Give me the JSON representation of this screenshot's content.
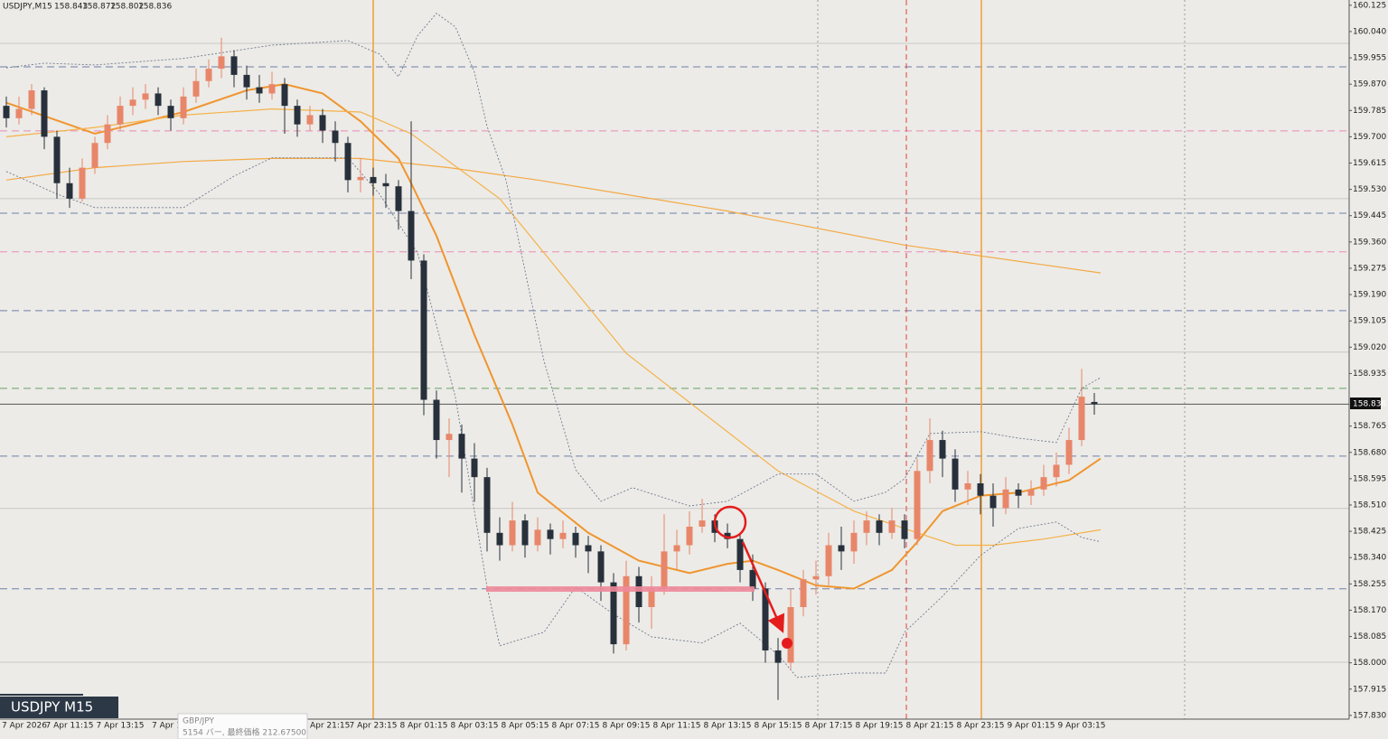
{
  "chart_data": {
    "type": "candlestick",
    "symbol_header": "USDJPY,M15",
    "symbol_label": "USDJPY M15",
    "popup": {
      "title": "GBP/JPY",
      "text": "5154 バー, 最終価格 212.67500"
    },
    "ylim": [
      157.818,
      160.142
    ],
    "yticks": [
      160.125,
      {
        "value": 160.04,
        "label": "160.040"
      },
      159.955,
      {
        "value": 159.87,
        "label": "159.870"
      },
      159.785,
      {
        "value": 159.7,
        "label": "159.700"
      },
      159.615,
      {
        "value": 159.53,
        "label": "159.530"
      },
      159.445,
      {
        "value": 159.36,
        "label": "159.360"
      },
      159.275,
      {
        "value": 159.19,
        "label": "159.190"
      },
      159.105,
      {
        "value": 159.02,
        "label": "159.020"
      },
      158.935,
      158.765,
      {
        "value": 158.68,
        "label": "158.680"
      },
      158.595,
      {
        "value": 158.51,
        "label": "158.510"
      },
      158.425,
      {
        "value": 158.34,
        "label": "158.340"
      },
      158.255,
      {
        "value": 158.17,
        "label": "158.170"
      },
      158.085,
      {
        "value": 158,
        "label": "158.000"
      },
      157.915,
      {
        "value": 157.83,
        "label": "157.830"
      }
    ],
    "x_labels": [
      "7 Apr 2026",
      "7 Apr 11:15",
      "7 Apr 13:15",
      "7 Apr 1",
      "Apr 21:15",
      "7 Apr 23:15",
      "8 Apr 01:15",
      "8 Apr 03:15",
      "8 Apr 05:15",
      "8 Apr 07:15",
      "8 Apr 09:15",
      "8 Apr 11:15",
      "8 Apr 13:15",
      "8 Apr 15:15",
      "8 Apr 17:15",
      "8 Apr 19:15",
      "8 Apr 21:15",
      "8 Apr 23:15",
      "9 Apr 01:15",
      "9 Apr 03:15"
    ],
    "up_color": "#e8866a",
    "down_color": "#27303b",
    "candles": [
      [
        159.8,
        159.83,
        159.73,
        159.76
      ],
      [
        159.76,
        159.83,
        159.74,
        159.79
      ],
      [
        159.79,
        159.87,
        159.77,
        159.85
      ],
      [
        159.85,
        159.86,
        159.66,
        159.7
      ],
      [
        159.7,
        159.72,
        159.5,
        159.55
      ],
      [
        159.55,
        159.6,
        159.47,
        159.5
      ],
      [
        159.5,
        159.63,
        159.49,
        159.6
      ],
      [
        159.6,
        159.7,
        159.58,
        159.68
      ],
      [
        159.68,
        159.77,
        159.66,
        159.74
      ],
      [
        159.74,
        159.83,
        159.72,
        159.8
      ],
      [
        159.8,
        159.86,
        159.77,
        159.82
      ],
      [
        159.82,
        159.87,
        159.79,
        159.84
      ],
      [
        159.84,
        159.86,
        159.77,
        159.8
      ],
      [
        159.8,
        159.82,
        159.72,
        159.76
      ],
      [
        159.76,
        159.86,
        159.74,
        159.83
      ],
      [
        159.83,
        159.92,
        159.81,
        159.88
      ],
      [
        159.88,
        159.95,
        159.86,
        159.92
      ],
      [
        159.92,
        160.02,
        159.89,
        159.96
      ],
      [
        159.96,
        159.98,
        159.86,
        159.9
      ],
      [
        159.9,
        159.93,
        159.82,
        159.86
      ],
      [
        159.86,
        159.9,
        159.81,
        159.84
      ],
      [
        159.84,
        159.91,
        159.82,
        159.87
      ],
      [
        159.87,
        159.89,
        159.71,
        159.8
      ],
      [
        159.8,
        159.82,
        159.7,
        159.74
      ],
      [
        159.74,
        159.8,
        159.72,
        159.77
      ],
      [
        159.77,
        159.79,
        159.68,
        159.72
      ],
      [
        159.72,
        159.75,
        159.62,
        159.68
      ],
      [
        159.68,
        159.7,
        159.52,
        159.56
      ],
      [
        159.56,
        159.63,
        159.52,
        159.57
      ],
      [
        159.57,
        159.6,
        159.51,
        159.55
      ],
      [
        159.55,
        159.58,
        159.47,
        159.54
      ],
      [
        159.54,
        159.56,
        159.4,
        159.46
      ],
      [
        159.46,
        159.75,
        159.24,
        159.3
      ],
      [
        159.3,
        159.32,
        158.8,
        158.85
      ],
      [
        158.85,
        158.88,
        158.66,
        158.72
      ],
      [
        158.72,
        158.79,
        158.6,
        158.74
      ],
      [
        158.74,
        158.77,
        158.55,
        158.66
      ],
      [
        158.66,
        158.71,
        158.52,
        158.6
      ],
      [
        158.6,
        158.63,
        158.36,
        158.42
      ],
      [
        158.42,
        158.47,
        158.33,
        158.38
      ],
      [
        158.38,
        158.52,
        158.36,
        158.46
      ],
      [
        158.46,
        158.48,
        158.34,
        158.38
      ],
      [
        158.38,
        158.47,
        158.36,
        158.43
      ],
      [
        158.43,
        158.45,
        158.35,
        158.4
      ],
      [
        158.4,
        158.46,
        158.37,
        158.42
      ],
      [
        158.42,
        158.44,
        158.34,
        158.38
      ],
      [
        158.38,
        158.41,
        158.29,
        158.36
      ],
      [
        158.36,
        158.38,
        158.2,
        158.26
      ],
      [
        158.26,
        158.29,
        158.03,
        158.06
      ],
      [
        158.06,
        158.33,
        158.04,
        158.28
      ],
      [
        158.28,
        158.31,
        158.13,
        158.18
      ],
      [
        158.18,
        158.28,
        158.11,
        158.24
      ],
      [
        158.24,
        158.48,
        158.22,
        158.36
      ],
      [
        158.36,
        158.43,
        158.3,
        158.38
      ],
      [
        158.38,
        158.49,
        158.35,
        158.44
      ],
      [
        158.44,
        158.53,
        158.42,
        158.46
      ],
      [
        158.46,
        158.48,
        158.39,
        158.42
      ],
      [
        158.42,
        158.45,
        158.37,
        158.4
      ],
      [
        158.4,
        158.42,
        158.26,
        158.3
      ],
      [
        158.3,
        158.35,
        158.2,
        158.24
      ],
      [
        158.24,
        158.26,
        158.0,
        158.04
      ],
      [
        158.04,
        158.08,
        157.88,
        158.0
      ],
      [
        158.0,
        158.24,
        157.98,
        158.18
      ],
      [
        158.18,
        158.3,
        158.15,
        158.27
      ],
      [
        158.27,
        158.33,
        158.22,
        158.28
      ],
      [
        158.28,
        158.42,
        158.25,
        158.38
      ],
      [
        158.38,
        158.44,
        158.3,
        158.36
      ],
      [
        158.36,
        158.46,
        158.32,
        158.42
      ],
      [
        158.42,
        158.49,
        158.38,
        158.46
      ],
      [
        158.46,
        158.48,
        158.38,
        158.42
      ],
      [
        158.42,
        158.5,
        158.4,
        158.46
      ],
      [
        158.46,
        158.48,
        158.37,
        158.4
      ],
      [
        158.4,
        158.66,
        158.38,
        158.62
      ],
      [
        158.62,
        158.79,
        158.58,
        158.72
      ],
      [
        158.72,
        158.75,
        158.6,
        158.66
      ],
      [
        158.66,
        158.69,
        158.52,
        158.56
      ],
      [
        158.56,
        158.62,
        158.51,
        158.58
      ],
      [
        158.58,
        158.61,
        158.48,
        158.54
      ],
      [
        158.54,
        158.58,
        158.44,
        158.5
      ],
      [
        158.5,
        158.6,
        158.48,
        158.56
      ],
      [
        158.56,
        158.58,
        158.5,
        158.54
      ],
      [
        158.54,
        158.59,
        158.51,
        158.56
      ],
      [
        158.56,
        158.64,
        158.54,
        158.6
      ],
      [
        158.6,
        158.68,
        158.57,
        158.64
      ],
      [
        158.64,
        158.76,
        158.61,
        158.72
      ],
      [
        158.72,
        158.95,
        158.7,
        158.86
      ],
      [
        158.843,
        158.872,
        158.802,
        158.836
      ]
    ],
    "levels": [
      {
        "price": 159.926,
        "color": "#6f7fa8",
        "dash": true
      },
      {
        "price": 159.453,
        "color": "#6f7fa8",
        "dash": true
      },
      {
        "price": 159.138,
        "color": "#6f7fa8",
        "dash": true
      },
      {
        "price": 158.668,
        "color": "#6f7fa8",
        "dash": true
      },
      {
        "price": 158.239,
        "color": "#6f7fa8",
        "dash": true
      },
      {
        "price": 159.719,
        "color": "#e98ab8",
        "dash": true
      },
      {
        "price": 159.328,
        "color": "#e98ab8",
        "dash": true
      },
      {
        "price": 158.887,
        "color": "#6aa06a",
        "dash": true
      },
      {
        "price": 160.002,
        "color": "#c8c8c4",
        "dash": false
      },
      {
        "price": 159.5,
        "color": "#c8c8c4",
        "dash": false
      },
      {
        "price": 159.004,
        "color": "#c8c8c4",
        "dash": false
      },
      {
        "price": 158.499,
        "color": "#c8c8c4",
        "dash": false
      },
      {
        "price": 158.002,
        "color": "#c8c8c4",
        "dash": false
      },
      {
        "price": 158.836,
        "color": "#555555",
        "dash": false
      }
    ],
    "indicators": [
      {
        "color": "#f0952f",
        "width": 2,
        "dash": false,
        "x": [
          0,
          7,
          14,
          19,
          22,
          25,
          28,
          31,
          32,
          34,
          37,
          40,
          42,
          46,
          50,
          54,
          57,
          59,
          61,
          64,
          67,
          70,
          72,
          74,
          77,
          80,
          82,
          84,
          86.5
        ],
        "values": [
          159.81,
          159.71,
          159.78,
          159.85,
          159.87,
          159.84,
          159.75,
          159.63,
          159.55,
          159.38,
          159.06,
          158.77,
          158.55,
          158.42,
          158.33,
          158.29,
          158.32,
          158.33,
          158.3,
          158.25,
          158.24,
          158.3,
          158.39,
          158.49,
          158.54,
          158.55,
          158.57,
          158.59,
          158.66
        ]
      },
      {
        "color": "#f5b24a",
        "width": 1.2,
        "dash": false,
        "x": [
          0,
          7,
          14,
          21,
          28,
          32,
          39,
          49,
          61,
          67,
          72,
          75,
          78,
          82,
          86.5
        ],
        "values": [
          159.7,
          159.73,
          159.77,
          159.79,
          159.78,
          159.71,
          159.5,
          159.0,
          158.62,
          158.49,
          158.42,
          158.38,
          158.38,
          158.4,
          158.43
        ]
      },
      {
        "color": "#f3a946",
        "width": 1.2,
        "dash": false,
        "x": [
          0,
          7,
          14,
          21,
          28,
          35,
          42,
          57,
          71,
          86.5
        ],
        "values": [
          159.56,
          159.6,
          159.62,
          159.63,
          159.63,
          159.6,
          159.56,
          159.46,
          159.35,
          159.26
        ]
      },
      {
        "color": "#707a90",
        "width": 0.9,
        "dash": true,
        "x": [
          0,
          3,
          7,
          14,
          21,
          27,
          29.5,
          31,
          32.5,
          34,
          35.5,
          37,
          38,
          39.5,
          41,
          42.5,
          45,
          47,
          49.5,
          54,
          57,
          59,
          61,
          64,
          67,
          69.5,
          71,
          73,
          77,
          80,
          83,
          85,
          86.5
        ],
        "values": [
          159.923,
          159.938,
          159.932,
          159.953,
          159.996,
          160.011,
          159.967,
          159.894,
          160.026,
          160.099,
          160.055,
          159.909,
          159.734,
          159.559,
          159.267,
          158.975,
          158.624,
          158.522,
          158.566,
          158.507,
          158.522,
          158.566,
          158.61,
          158.61,
          158.522,
          158.551,
          158.595,
          158.741,
          158.747,
          158.726,
          158.712,
          158.887,
          158.922
        ]
      },
      {
        "color": "#707a90",
        "width": 0.9,
        "dash": true,
        "x": [
          0,
          4,
          7,
          14,
          18,
          21,
          27,
          29.5,
          32.5,
          35.5,
          38,
          39,
          42.5,
          45,
          48,
          51,
          55,
          58,
          61,
          62.5,
          67,
          69.5,
          71,
          74,
          77,
          80,
          83,
          85,
          86.5
        ],
        "values": [
          159.588,
          159.515,
          159.471,
          159.471,
          159.573,
          159.632,
          159.632,
          159.515,
          159.325,
          158.858,
          158.245,
          158.055,
          158.099,
          158.245,
          158.157,
          158.084,
          158.064,
          158.128,
          158.026,
          157.953,
          157.967,
          157.967,
          158.099,
          158.215,
          158.347,
          158.434,
          158.455,
          158.405,
          158.391
        ]
      }
    ]
  }
}
